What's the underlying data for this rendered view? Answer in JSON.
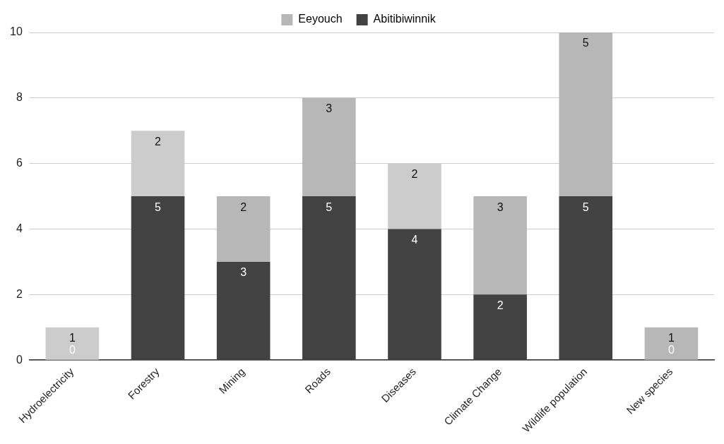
{
  "chart_data": {
    "type": "bar",
    "stacked": true,
    "categories": [
      "Hydroelectricity",
      "Forestry",
      "Mining",
      "Roads",
      "Diseases",
      "Climate Change",
      "Wildlife population",
      "New species"
    ],
    "series": [
      {
        "name": "Abitibiwinnik",
        "color": "#424242",
        "values": [
          0,
          5,
          3,
          5,
          4,
          2,
          5,
          0
        ]
      },
      {
        "name": "Eeyouch",
        "color": "#b7b7b7",
        "colors": [
          "#cccccc",
          "#cccccc",
          "#b7b7b7",
          "#b7b7b7",
          "#cccccc",
          "#b7b7b7",
          "#b7b7b7",
          "#b7b7b7"
        ],
        "values": [
          1,
          2,
          2,
          3,
          2,
          3,
          5,
          1
        ]
      }
    ],
    "ylim": [
      0,
      10
    ],
    "yticks": [
      0,
      2,
      4,
      6,
      8,
      10
    ],
    "grid": "y",
    "legend": "top",
    "data_labels": true
  }
}
